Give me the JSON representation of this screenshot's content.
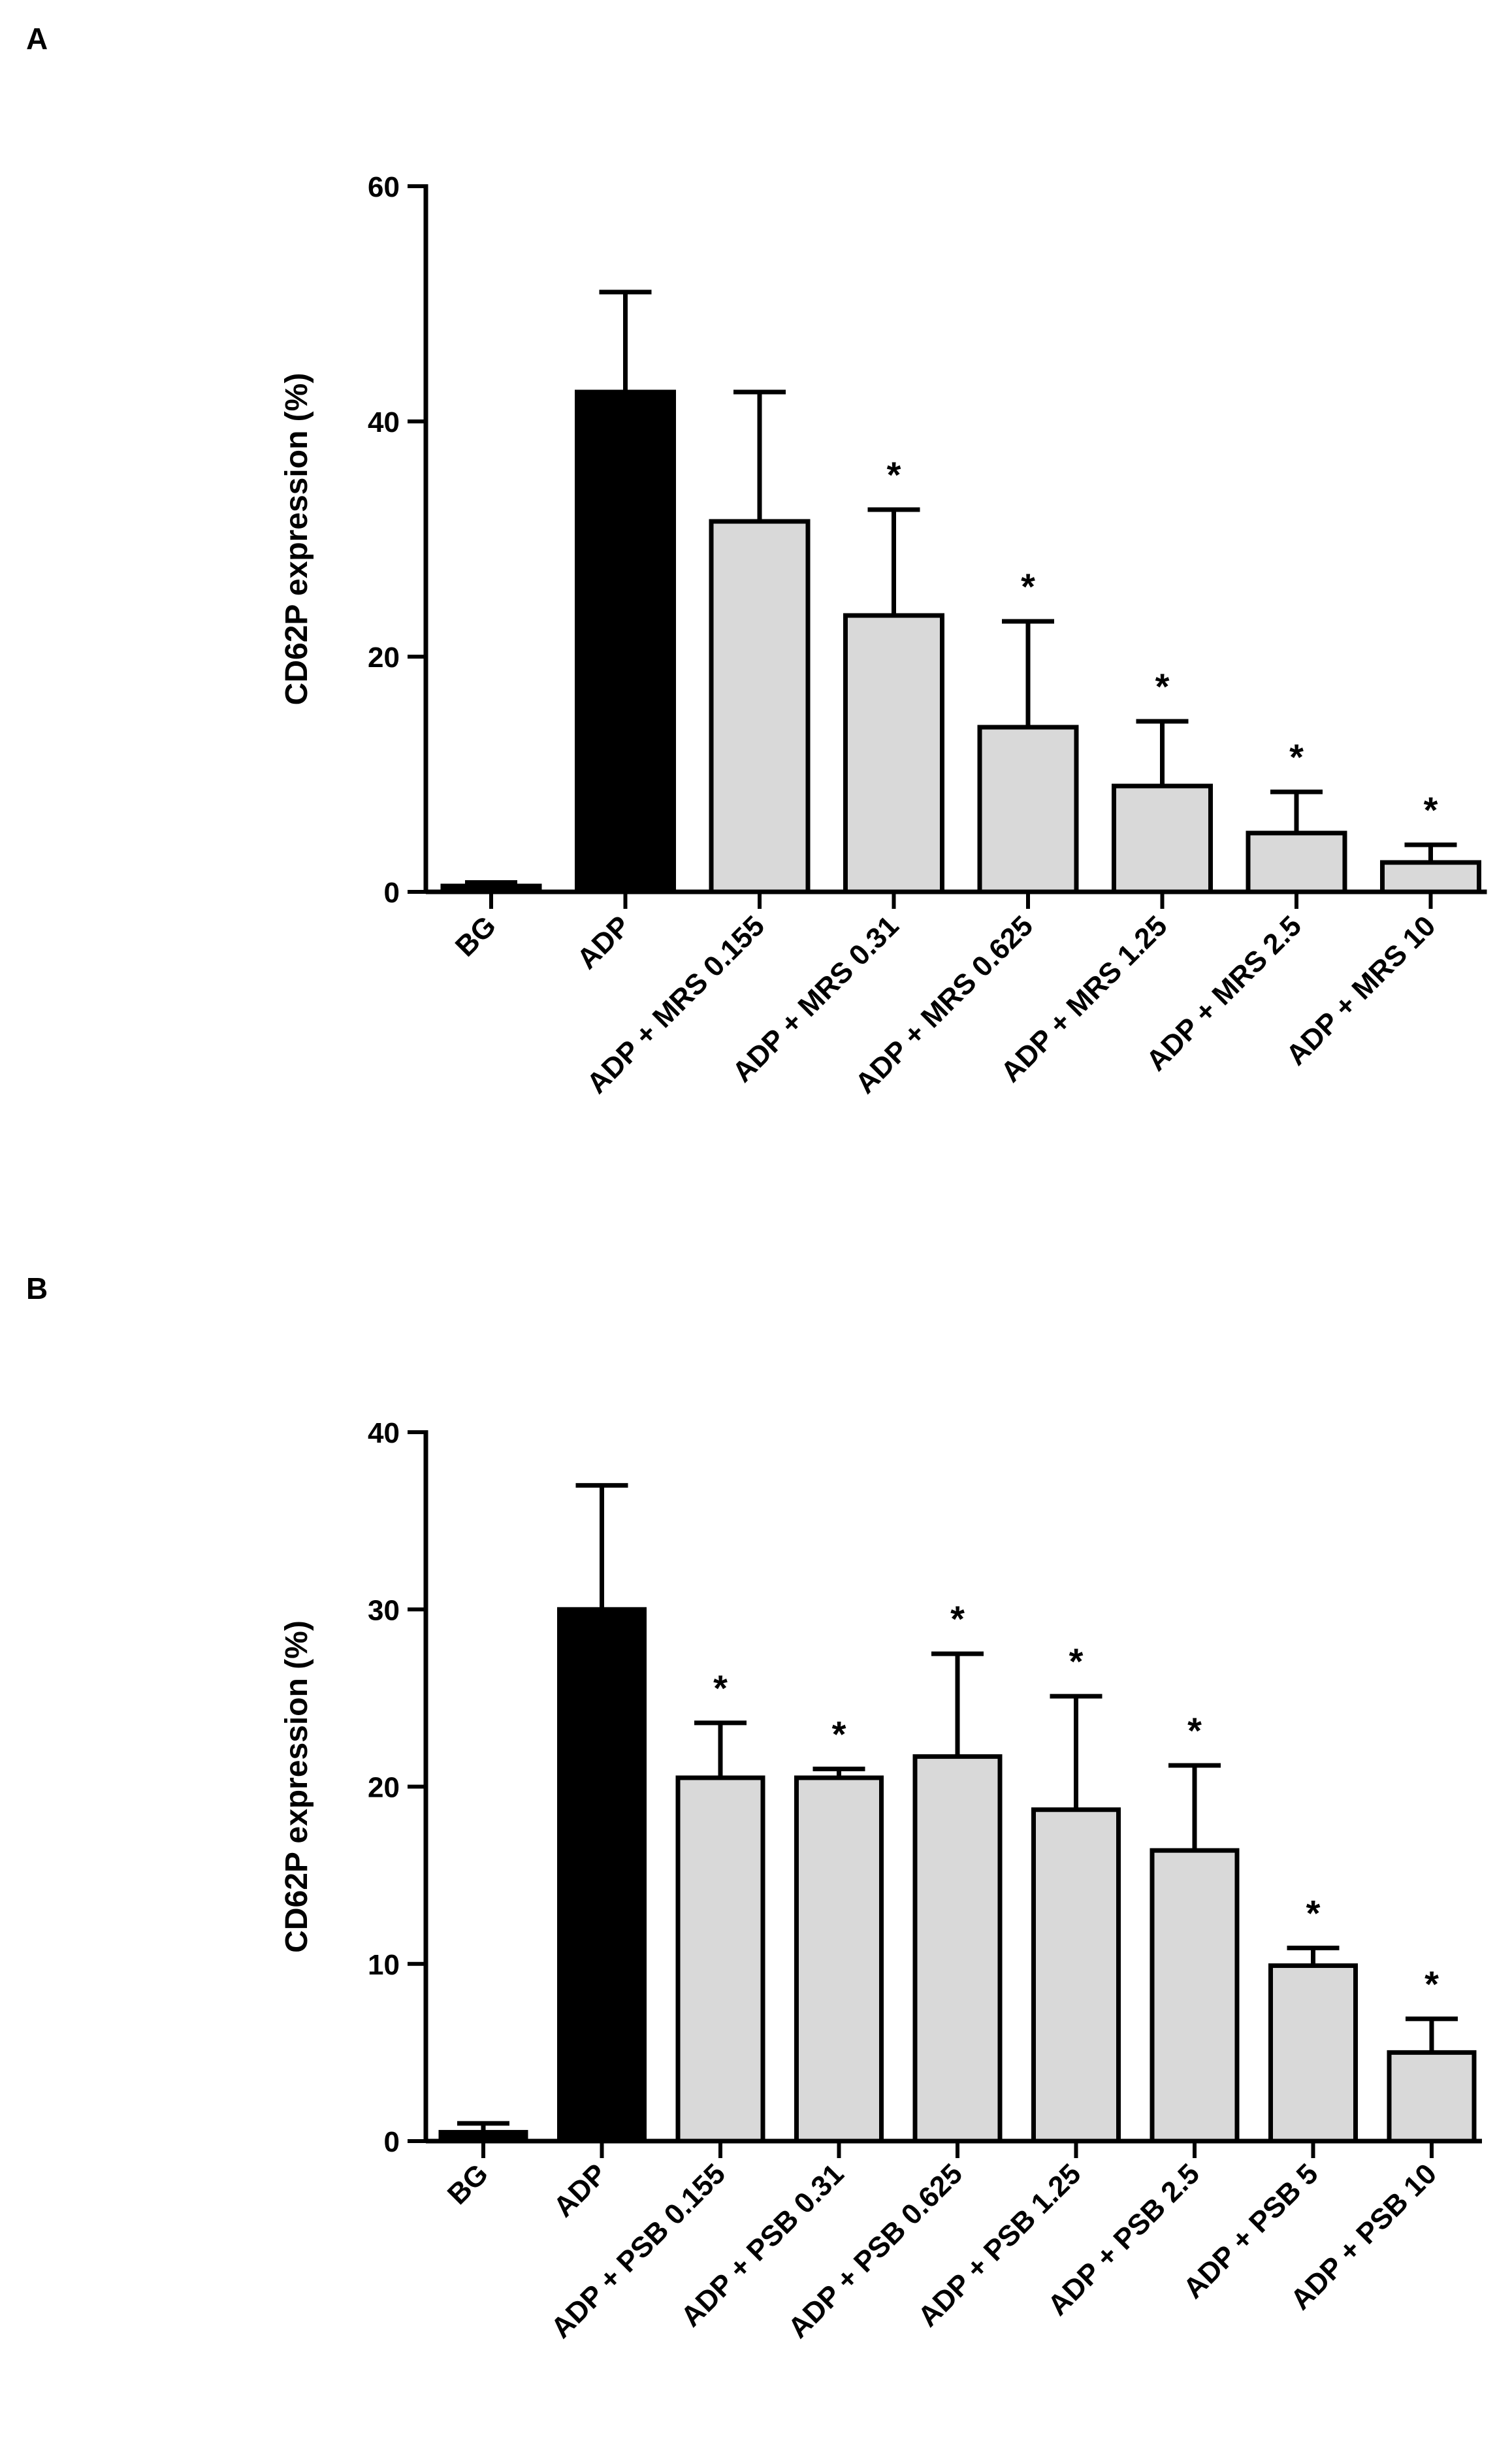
{
  "colors": {
    "control": "#000000",
    "treated": "#d9d9d9",
    "outline": "#000000",
    "background": "#ffffff"
  },
  "chart_data": [
    {
      "panel": "A",
      "type": "bar",
      "ylabel": "CD62P expression (%)",
      "xlabel": "",
      "ylim": [
        0,
        60
      ],
      "yticks": [
        0,
        20,
        40,
        60
      ],
      "categories": [
        "BG",
        "ADP",
        "ADP + MRS 0.155",
        "ADP + MRS 0.31",
        "ADP + MRS 0.625",
        "ADP + MRS 1.25",
        "ADP + MRS 2.5",
        "ADP + MRS 10"
      ],
      "values": [
        0.5,
        42.5,
        31.5,
        23.5,
        14.0,
        9.0,
        5.0,
        2.5
      ],
      "errors": [
        0.3,
        8.5,
        11.0,
        9.0,
        9.0,
        5.5,
        3.5,
        1.5
      ],
      "significant": [
        false,
        false,
        false,
        true,
        true,
        true,
        true,
        true
      ],
      "significance_marker": "*",
      "fill": [
        "control",
        "control",
        "treated",
        "treated",
        "treated",
        "treated",
        "treated",
        "treated"
      ]
    },
    {
      "panel": "B",
      "type": "bar",
      "ylabel": "CD62P expression (%)",
      "xlabel": "",
      "ylim": [
        0,
        40
      ],
      "yticks": [
        0,
        10,
        20,
        30,
        40
      ],
      "categories": [
        "BG",
        "ADP",
        "ADP + PSB 0.155",
        "ADP + PSB 0.31",
        "ADP + PSB 0.625",
        "ADP + PSB 1.25",
        "ADP + PSB 2.5",
        "ADP + PSB 5",
        "ADP + PSB 10"
      ],
      "values": [
        0.5,
        30.0,
        20.5,
        20.5,
        21.7,
        18.7,
        16.4,
        9.9,
        5.0
      ],
      "errors": [
        0.5,
        7.0,
        3.1,
        0.5,
        5.8,
        6.4,
        4.8,
        1.0,
        1.9
      ],
      "significant": [
        false,
        false,
        true,
        true,
        true,
        true,
        true,
        true,
        true
      ],
      "significance_marker": "*",
      "fill": [
        "control",
        "control",
        "treated",
        "treated",
        "treated",
        "treated",
        "treated",
        "treated",
        "treated"
      ]
    }
  ]
}
